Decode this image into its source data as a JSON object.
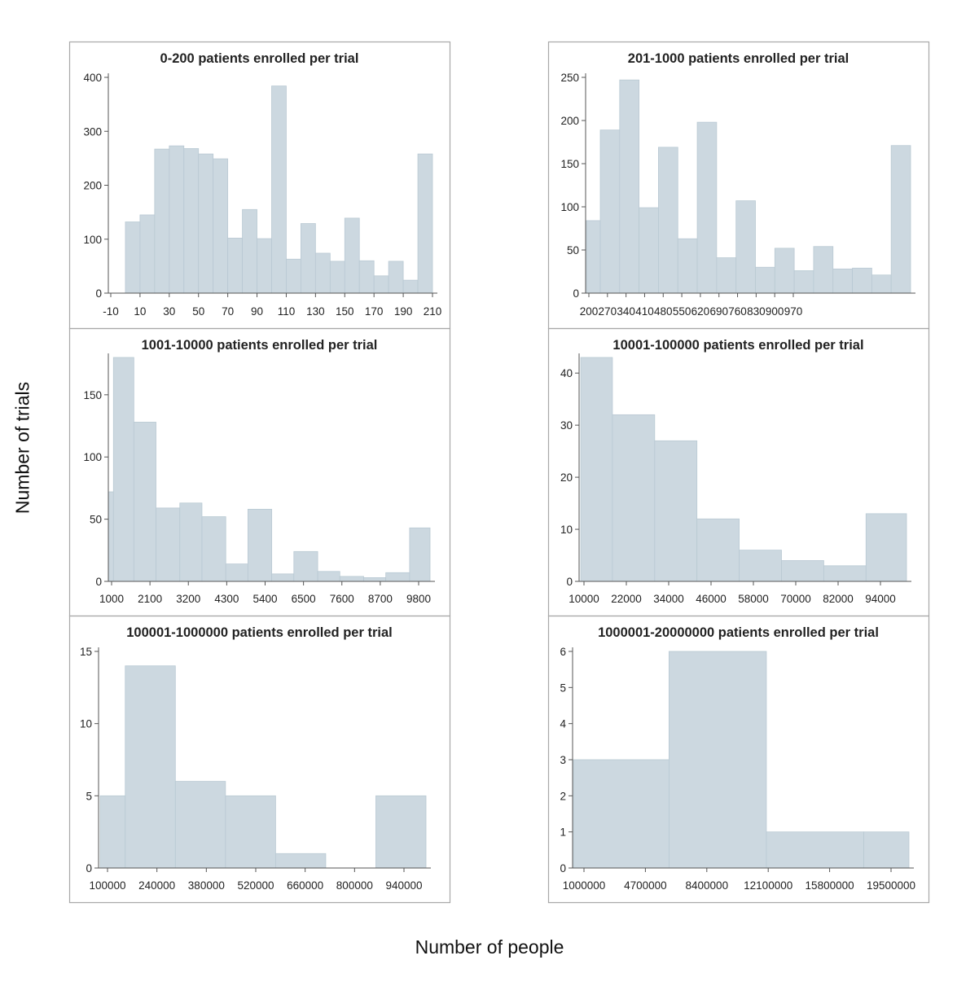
{
  "figure": {
    "ylabel": "Number of trials",
    "xlabel": "Number of people"
  },
  "colors": {
    "bar_fill": "#ccd8e0",
    "bar_stroke": "#b9c9d3",
    "panel_border": "#a8a8a8",
    "text": "#222222"
  },
  "chart_data": [
    {
      "type": "bar",
      "title": "0-200 patients enrolled per trial",
      "xlim": [
        -10,
        210
      ],
      "xticks": [
        "-10",
        "10",
        "30",
        "50",
        "70",
        "90",
        "110",
        "130",
        "150",
        "170",
        "190",
        "210"
      ],
      "ylim": [
        0,
        400
      ],
      "yticks": [
        0,
        100,
        200,
        300,
        400
      ],
      "bin_width": 10,
      "bins": [
        {
          "x0": 0,
          "x1": 10,
          "value": 132
        },
        {
          "x0": 10,
          "x1": 20,
          "value": 145
        },
        {
          "x0": 20,
          "x1": 30,
          "value": 267
        },
        {
          "x0": 30,
          "x1": 40,
          "value": 273
        },
        {
          "x0": 40,
          "x1": 50,
          "value": 268
        },
        {
          "x0": 50,
          "x1": 60,
          "value": 258
        },
        {
          "x0": 60,
          "x1": 70,
          "value": 249
        },
        {
          "x0": 70,
          "x1": 80,
          "value": 102
        },
        {
          "x0": 80,
          "x1": 90,
          "value": 155
        },
        {
          "x0": 90,
          "x1": 100,
          "value": 101
        },
        {
          "x0": 100,
          "x1": 110,
          "value": 384
        },
        {
          "x0": 110,
          "x1": 120,
          "value": 63
        },
        {
          "x0": 120,
          "x1": 130,
          "value": 129
        },
        {
          "x0": 130,
          "x1": 140,
          "value": 74
        },
        {
          "x0": 140,
          "x1": 150,
          "value": 59
        },
        {
          "x0": 150,
          "x1": 160,
          "value": 139
        },
        {
          "x0": 160,
          "x1": 170,
          "value": 60
        },
        {
          "x0": 170,
          "x1": 180,
          "value": 32
        },
        {
          "x0": 180,
          "x1": 190,
          "value": 59
        },
        {
          "x0": 190,
          "x1": 200,
          "value": 24
        },
        {
          "x0": 200,
          "x1": 210,
          "value": 258
        }
      ]
    },
    {
      "type": "bar",
      "title": "201-1000 patients enrolled per trial",
      "xlim": [
        200,
        1040
      ],
      "xticks": [
        "200",
        "270",
        "340",
        "410",
        "480",
        "550",
        "620",
        "690",
        "760",
        "830",
        "900",
        "970"
      ],
      "ylim": [
        0,
        250
      ],
      "yticks": [
        0,
        50,
        100,
        150,
        200,
        250
      ],
      "bin_width": 50,
      "bins": [
        {
          "x0": 200,
          "x1": 250,
          "value": 84
        },
        {
          "x0": 250,
          "x1": 320,
          "value": 189
        },
        {
          "x0": 320,
          "x1": 390,
          "value": 247
        },
        {
          "x0": 390,
          "x1": 460,
          "value": 99
        },
        {
          "x0": 460,
          "x1": 530,
          "value": 169
        },
        {
          "x0": 530,
          "x1": 600,
          "value": 63
        },
        {
          "x0": 600,
          "x1": 670,
          "value": 198
        },
        {
          "x0": 670,
          "x1": 740,
          "value": 41
        },
        {
          "x0": 740,
          "x1": 810,
          "value": 107
        },
        {
          "x0": 810,
          "x1": 880,
          "value": 30
        },
        {
          "x0": 880,
          "x1": 950,
          "value": 52
        },
        {
          "x0": 950,
          "x1": 1020,
          "value": 26
        },
        {
          "x0": 1020,
          "x1": 1090,
          "value": 54
        },
        {
          "x0": 1090,
          "x1": 1160,
          "value": 28
        },
        {
          "x0": 1160,
          "x1": 1230,
          "value": 29
        },
        {
          "x0": 1230,
          "x1": 1300,
          "value": 21
        },
        {
          "x0": 1300,
          "x1": 1370,
          "value": 171
        }
      ]
    },
    {
      "type": "bar",
      "title": "1001-10000 patients enrolled per trial",
      "xlim": [
        1000,
        10300
      ],
      "xticks": [
        "1000",
        "2100",
        "3200",
        "4300",
        "5400",
        "6500",
        "7600",
        "8700",
        "9800"
      ],
      "ylim": [
        0,
        180
      ],
      "yticks": [
        0,
        50,
        100,
        150
      ],
      "bins": [
        {
          "x0": 850,
          "x1": 1000,
          "value": 72
        },
        {
          "x0": 1000,
          "x1": 1600,
          "value": 180
        },
        {
          "x0": 1600,
          "x1": 2250,
          "value": 128
        },
        {
          "x0": 2250,
          "x1": 2950,
          "value": 59
        },
        {
          "x0": 2950,
          "x1": 3600,
          "value": 63
        },
        {
          "x0": 3600,
          "x1": 4300,
          "value": 52
        },
        {
          "x0": 4300,
          "x1": 4950,
          "value": 14
        },
        {
          "x0": 4950,
          "x1": 5650,
          "value": 58
        },
        {
          "x0": 5650,
          "x1": 6300,
          "value": 6
        },
        {
          "x0": 6300,
          "x1": 7000,
          "value": 24
        },
        {
          "x0": 7000,
          "x1": 7650,
          "value": 8
        },
        {
          "x0": 7650,
          "x1": 8350,
          "value": 4
        },
        {
          "x0": 8350,
          "x1": 9000,
          "value": 3
        },
        {
          "x0": 9000,
          "x1": 9700,
          "value": 7
        },
        {
          "x0": 9700,
          "x1": 10300,
          "value": 43
        }
      ]
    },
    {
      "type": "bar",
      "title": "10001-100000 patients enrolled per trial",
      "xlim": [
        10000,
        100000
      ],
      "xticks": [
        "10000",
        "22000",
        "34000",
        "46000",
        "58000",
        "70000",
        "82000",
        "94000"
      ],
      "ylim": [
        0,
        43
      ],
      "yticks": [
        0,
        10,
        20,
        30,
        40
      ],
      "bins": [
        {
          "x0": 9000,
          "x1": 18000,
          "value": 43
        },
        {
          "x0": 18000,
          "x1": 30000,
          "value": 32
        },
        {
          "x0": 30000,
          "x1": 42000,
          "value": 27
        },
        {
          "x0": 42000,
          "x1": 54000,
          "value": 12
        },
        {
          "x0": 54000,
          "x1": 66000,
          "value": 6
        },
        {
          "x0": 66000,
          "x1": 78000,
          "value": 4
        },
        {
          "x0": 78000,
          "x1": 90000,
          "value": 3
        },
        {
          "x0": 90000,
          "x1": 101500,
          "value": 13
        }
      ]
    },
    {
      "type": "bar",
      "title": "100001-1000000 patients enrolled per trial",
      "xlim": [
        100000,
        1000000
      ],
      "xticks": [
        "100000",
        "240000",
        "380000",
        "520000",
        "660000",
        "800000",
        "940000"
      ],
      "ylim": [
        0,
        15
      ],
      "yticks": [
        0,
        5,
        10,
        15
      ],
      "bins": [
        {
          "x0": 90000,
          "x1": 160000,
          "value": 5
        },
        {
          "x0": 160000,
          "x1": 300000,
          "value": 14
        },
        {
          "x0": 300000,
          "x1": 440000,
          "value": 6
        },
        {
          "x0": 440000,
          "x1": 580000,
          "value": 5
        },
        {
          "x0": 580000,
          "x1": 720000,
          "value": 1
        },
        {
          "x0": 720000,
          "x1": 860000,
          "value": 0
        },
        {
          "x0": 860000,
          "x1": 1000000,
          "value": 5
        }
      ]
    },
    {
      "type": "bar",
      "title": "1000001-20000000 patients enrolled per trial",
      "xlim": [
        1000000,
        20000000
      ],
      "xticks": [
        "1000000",
        "4700000",
        "8400000",
        "12100000",
        "15800000",
        "19500000"
      ],
      "ylim": [
        0,
        6
      ],
      "yticks": [
        0,
        1,
        2,
        3,
        4,
        5,
        6
      ],
      "bins": [
        {
          "x0": 500000,
          "x1": 6000000,
          "value": 3
        },
        {
          "x0": 6000000,
          "x1": 11600000,
          "value": 6
        },
        {
          "x0": 11600000,
          "x1": 17200000,
          "value": 1
        },
        {
          "x0": 17200000,
          "x1": 19800000,
          "value": 1
        }
      ]
    }
  ]
}
